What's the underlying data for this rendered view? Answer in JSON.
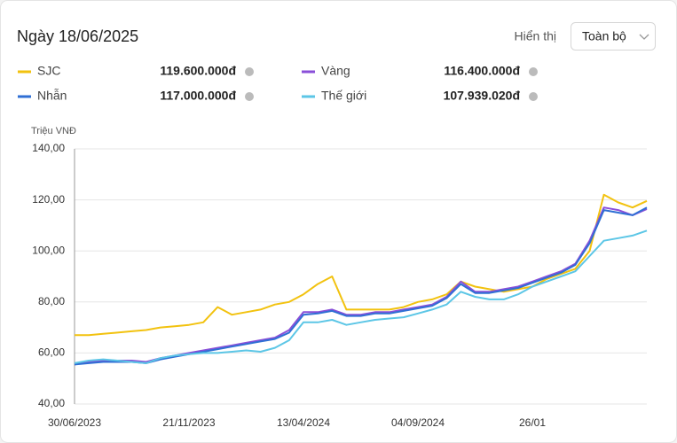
{
  "header": {
    "title": "Ngày 18/06/2025",
    "display_label": "Hiển thị",
    "display_value": "Toàn bộ"
  },
  "chart_data": {
    "type": "line",
    "y_label": "Triệu VNĐ",
    "categories": [
      "30/06/2023",
      null,
      null,
      null,
      null,
      null,
      null,
      null,
      "21/11/2023",
      null,
      null,
      null,
      null,
      null,
      null,
      null,
      "13/04/2024",
      null,
      null,
      null,
      null,
      null,
      null,
      null,
      "04/09/2024",
      null,
      null,
      null,
      null,
      null,
      null,
      null,
      "26/01",
      null,
      null,
      null,
      null,
      null,
      null,
      null,
      null
    ],
    "ylim": [
      40,
      140
    ],
    "yticks": [
      {
        "value": 40,
        "label": "40,00"
      },
      {
        "value": 60,
        "label": "60,00"
      },
      {
        "value": 80,
        "label": "80,00"
      },
      {
        "value": 100,
        "label": "100,00"
      },
      {
        "value": 120,
        "label": "120,00"
      },
      {
        "value": 140,
        "label": "140,00"
      }
    ],
    "grid": true,
    "series": [
      {
        "name": "SJC",
        "color": "#f2c20f",
        "value_label": "119.600.000đ",
        "values": [
          67,
          67,
          67.5,
          68,
          68.5,
          69,
          70,
          70.5,
          71,
          72,
          78,
          75,
          76,
          77,
          79,
          80,
          83,
          87,
          90,
          77,
          77,
          77,
          77,
          78,
          80,
          81,
          83,
          88,
          86,
          85,
          84,
          85,
          86,
          89,
          91,
          93,
          100,
          122,
          119,
          117,
          119.6
        ]
      },
      {
        "name": "Vàng",
        "color": "#8a4fd8",
        "value_label": "116.400.000đ",
        "values": [
          55.5,
          56.5,
          57,
          57,
          57,
          56.5,
          58,
          59,
          60,
          61,
          62,
          63,
          64,
          65,
          66,
          69,
          76,
          76,
          77,
          75,
          75,
          76,
          76,
          77,
          78,
          79,
          82,
          88,
          84,
          84,
          85,
          86,
          88,
          90,
          92,
          95,
          104,
          117,
          116,
          114,
          116.4
        ]
      },
      {
        "name": "Nhẫn",
        "color": "#2f6fd4",
        "value_label": "117.000.000đ",
        "values": [
          55.5,
          56,
          56.5,
          56.5,
          56.5,
          56,
          57.5,
          58.5,
          59.5,
          60.5,
          61.5,
          62.5,
          63.5,
          64.5,
          65.5,
          68,
          75,
          75.5,
          76.5,
          74.5,
          74.5,
          75.5,
          75.5,
          76.5,
          77.5,
          78.5,
          81.5,
          87,
          83.5,
          83.5,
          84.5,
          85.5,
          87.5,
          89.5,
          91.5,
          94.5,
          103,
          116,
          115,
          114,
          117
        ]
      },
      {
        "name": "Thế giới",
        "color": "#5cc6e6",
        "value_label": "107.939.020đ",
        "values": [
          56,
          57,
          57.5,
          57,
          56.5,
          56,
          58,
          59,
          59.5,
          60,
          60,
          60.5,
          61,
          60.5,
          62,
          65,
          72,
          72,
          73,
          71,
          72,
          73,
          73.5,
          74,
          75.5,
          77,
          79,
          84,
          82,
          81,
          81,
          83,
          86,
          88,
          90,
          92,
          98,
          104,
          105,
          106,
          107.939
        ]
      }
    ]
  }
}
